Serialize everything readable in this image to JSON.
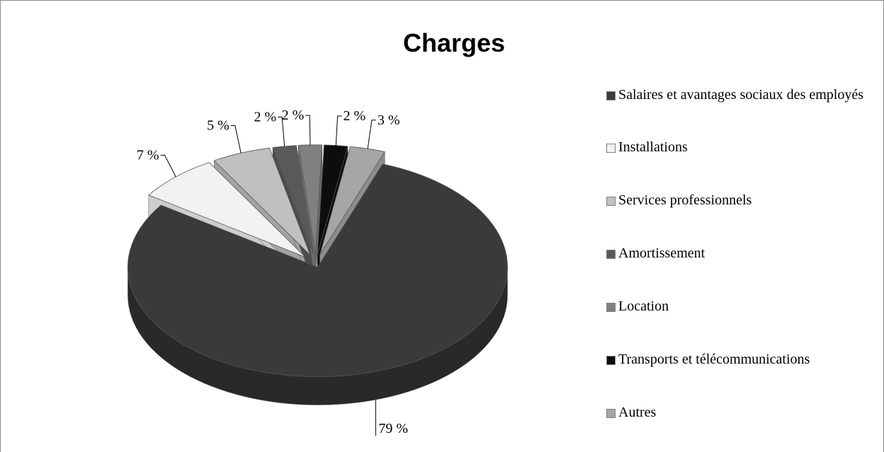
{
  "chart_data": {
    "type": "pie",
    "title": "Charges",
    "categories": [
      "Salaires et avantages sociaux des employés",
      "Installations",
      "Services professionnels",
      "Amortissement",
      "Location",
      "Transports et télécommunications",
      "Autres"
    ],
    "values": [
      79,
      7,
      5,
      2,
      2,
      2,
      3
    ],
    "value_labels": [
      "79 %",
      "7 %",
      "5 %",
      "2 %",
      "2 %",
      "2 %",
      "3 %"
    ],
    "colors": [
      "#3a3a3a",
      "#f2f2f2",
      "#c0c0c0",
      "#595959",
      "#808080",
      "#0d0d0d",
      "#a6a6a6"
    ],
    "legend": "right"
  }
}
